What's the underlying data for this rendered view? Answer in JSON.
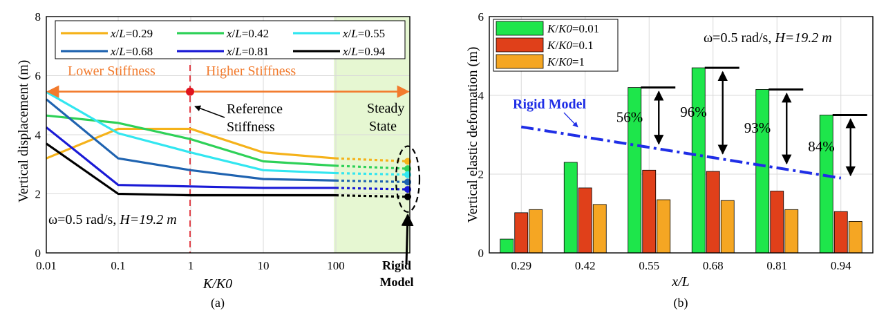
{
  "chart_data": [
    {
      "panel_label": "(a)",
      "type": "line",
      "xlabel": "K/K0",
      "ylabel": "Vertical displacement (m)",
      "x_scale": "log",
      "x": [
        0.01,
        0.1,
        1,
        10,
        100
      ],
      "x_tick_labels": [
        "0.01",
        "0.1",
        "1",
        "10",
        "100"
      ],
      "extra_x_tick_label": [
        "Rigid",
        "Model"
      ],
      "ylim": [
        0,
        8
      ],
      "yticks": [
        0,
        2,
        4,
        6,
        8
      ],
      "grid": true,
      "legend_placement": "top",
      "series": [
        {
          "name": "x/L=0.29",
          "color": "#f5b21a",
          "values": [
            3.2,
            4.2,
            4.2,
            3.4,
            3.2
          ],
          "rigid": 3.1
        },
        {
          "name": "x/L=0.42",
          "color": "#2ed158",
          "values": [
            4.65,
            4.4,
            3.85,
            3.1,
            2.95
          ],
          "rigid": 2.85
        },
        {
          "name": "x/L=0.55",
          "color": "#32e6f0",
          "values": [
            5.45,
            4.05,
            3.4,
            2.8,
            2.7
          ],
          "rigid": 2.65
        },
        {
          "name": "x/L=0.68",
          "color": "#1f63b0",
          "values": [
            5.2,
            3.2,
            2.8,
            2.5,
            2.45
          ],
          "rigid": 2.4
        },
        {
          "name": "x/L=0.81",
          "color": "#1a1ad6",
          "values": [
            4.25,
            2.3,
            2.25,
            2.2,
            2.2
          ],
          "rigid": 2.15
        },
        {
          "name": "x/L=0.94",
          "color": "#000000",
          "values": [
            3.7,
            2.0,
            1.95,
            1.95,
            1.95
          ],
          "rigid": 1.9
        }
      ],
      "annotations": {
        "lower_stiffness": "Lower Stiffness",
        "higher_stiffness": "Higher Stiffness",
        "reference_stiffness_1": "Reference",
        "reference_stiffness_2": "Stiffness",
        "steady_state_1": "Steady",
        "steady_state_2": "State",
        "condition_omega": "ω=0.5 rad/s, ",
        "condition_H": "H=19.2 m",
        "stiffness_arrow_y": 5.6,
        "reference_x": 1,
        "steady_state_from_x": 100
      },
      "colors": {
        "arrow": "#f27a2c",
        "reference_line": "#e0141e",
        "steady_state_fill": "#e6f7d2"
      }
    },
    {
      "panel_label": "(b)",
      "type": "bar",
      "xlabel": "x/L",
      "ylabel": "Vertical elastic deformation (m)",
      "categories": [
        "0.29",
        "0.42",
        "0.55",
        "0.68",
        "0.81",
        "0.94"
      ],
      "ylim": [
        0,
        6
      ],
      "yticks": [
        0,
        2,
        4,
        6
      ],
      "grid": true,
      "legend_placement": "top-left",
      "series": [
        {
          "name": "K/K0=0.01",
          "color": "#1ee64b",
          "values": [
            0.35,
            2.3,
            4.2,
            4.7,
            4.15,
            3.5
          ]
        },
        {
          "name": "K/K0=0.1",
          "color": "#e0401a",
          "values": [
            1.02,
            1.65,
            2.1,
            2.07,
            1.57,
            1.05
          ]
        },
        {
          "name": "K/K0=1",
          "color": "#f5a623",
          "values": [
            1.1,
            1.23,
            1.35,
            1.33,
            1.1,
            0.8
          ]
        }
      ],
      "rigid_model": {
        "label": "Rigid Model",
        "color": "#1f2ee6",
        "values": [
          3.2,
          2.95,
          2.7,
          2.45,
          2.2,
          1.9
        ]
      },
      "reductions": [
        {
          "category": "0.55",
          "label": "56%"
        },
        {
          "category": "0.68",
          "label": "96%"
        },
        {
          "category": "0.81",
          "label": "93%"
        },
        {
          "category": "0.94",
          "label": "84%"
        }
      ],
      "annotations": {
        "condition_omega": "ω=0.5 rad/s, ",
        "condition_H": "H=19.2 m"
      }
    }
  ]
}
